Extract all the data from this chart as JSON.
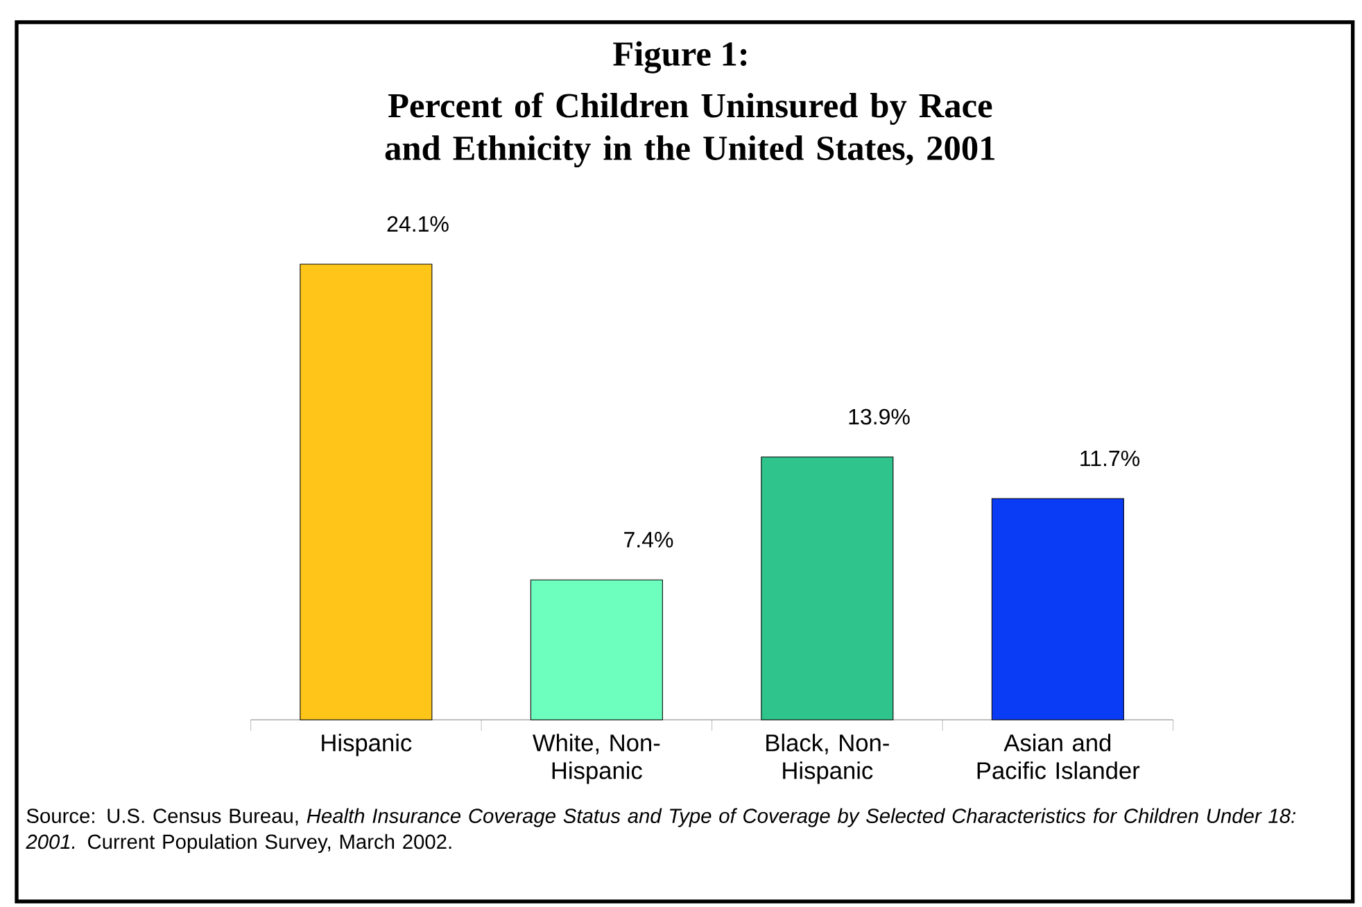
{
  "chart_data": {
    "type": "bar",
    "title": "Figure 1:",
    "subtitle": "Percent of Children Uninsured by Race and Ethnicity in the United States, 2001",
    "categories": [
      "Hispanic",
      "White, Non-Hispanic",
      "Black, Non-Hispanic",
      "Asian and Pacific Islander"
    ],
    "values": [
      24.1,
      7.4,
      13.9,
      11.7
    ],
    "value_labels": [
      "24.1%",
      "7.4%",
      "13.9%",
      "11.7%"
    ],
    "colors": [
      "#ffc619",
      "#6cffbd",
      "#2ec48c",
      "#0a3cf5"
    ],
    "annotations": [
      "Source:  U.S. Census Bureau, *Health Insurance Coverage Status and Type of Coverage by Selected Characteristics for Children Under 18: 2001.*  Current Population Survey, March 2002."
    ]
  }
}
